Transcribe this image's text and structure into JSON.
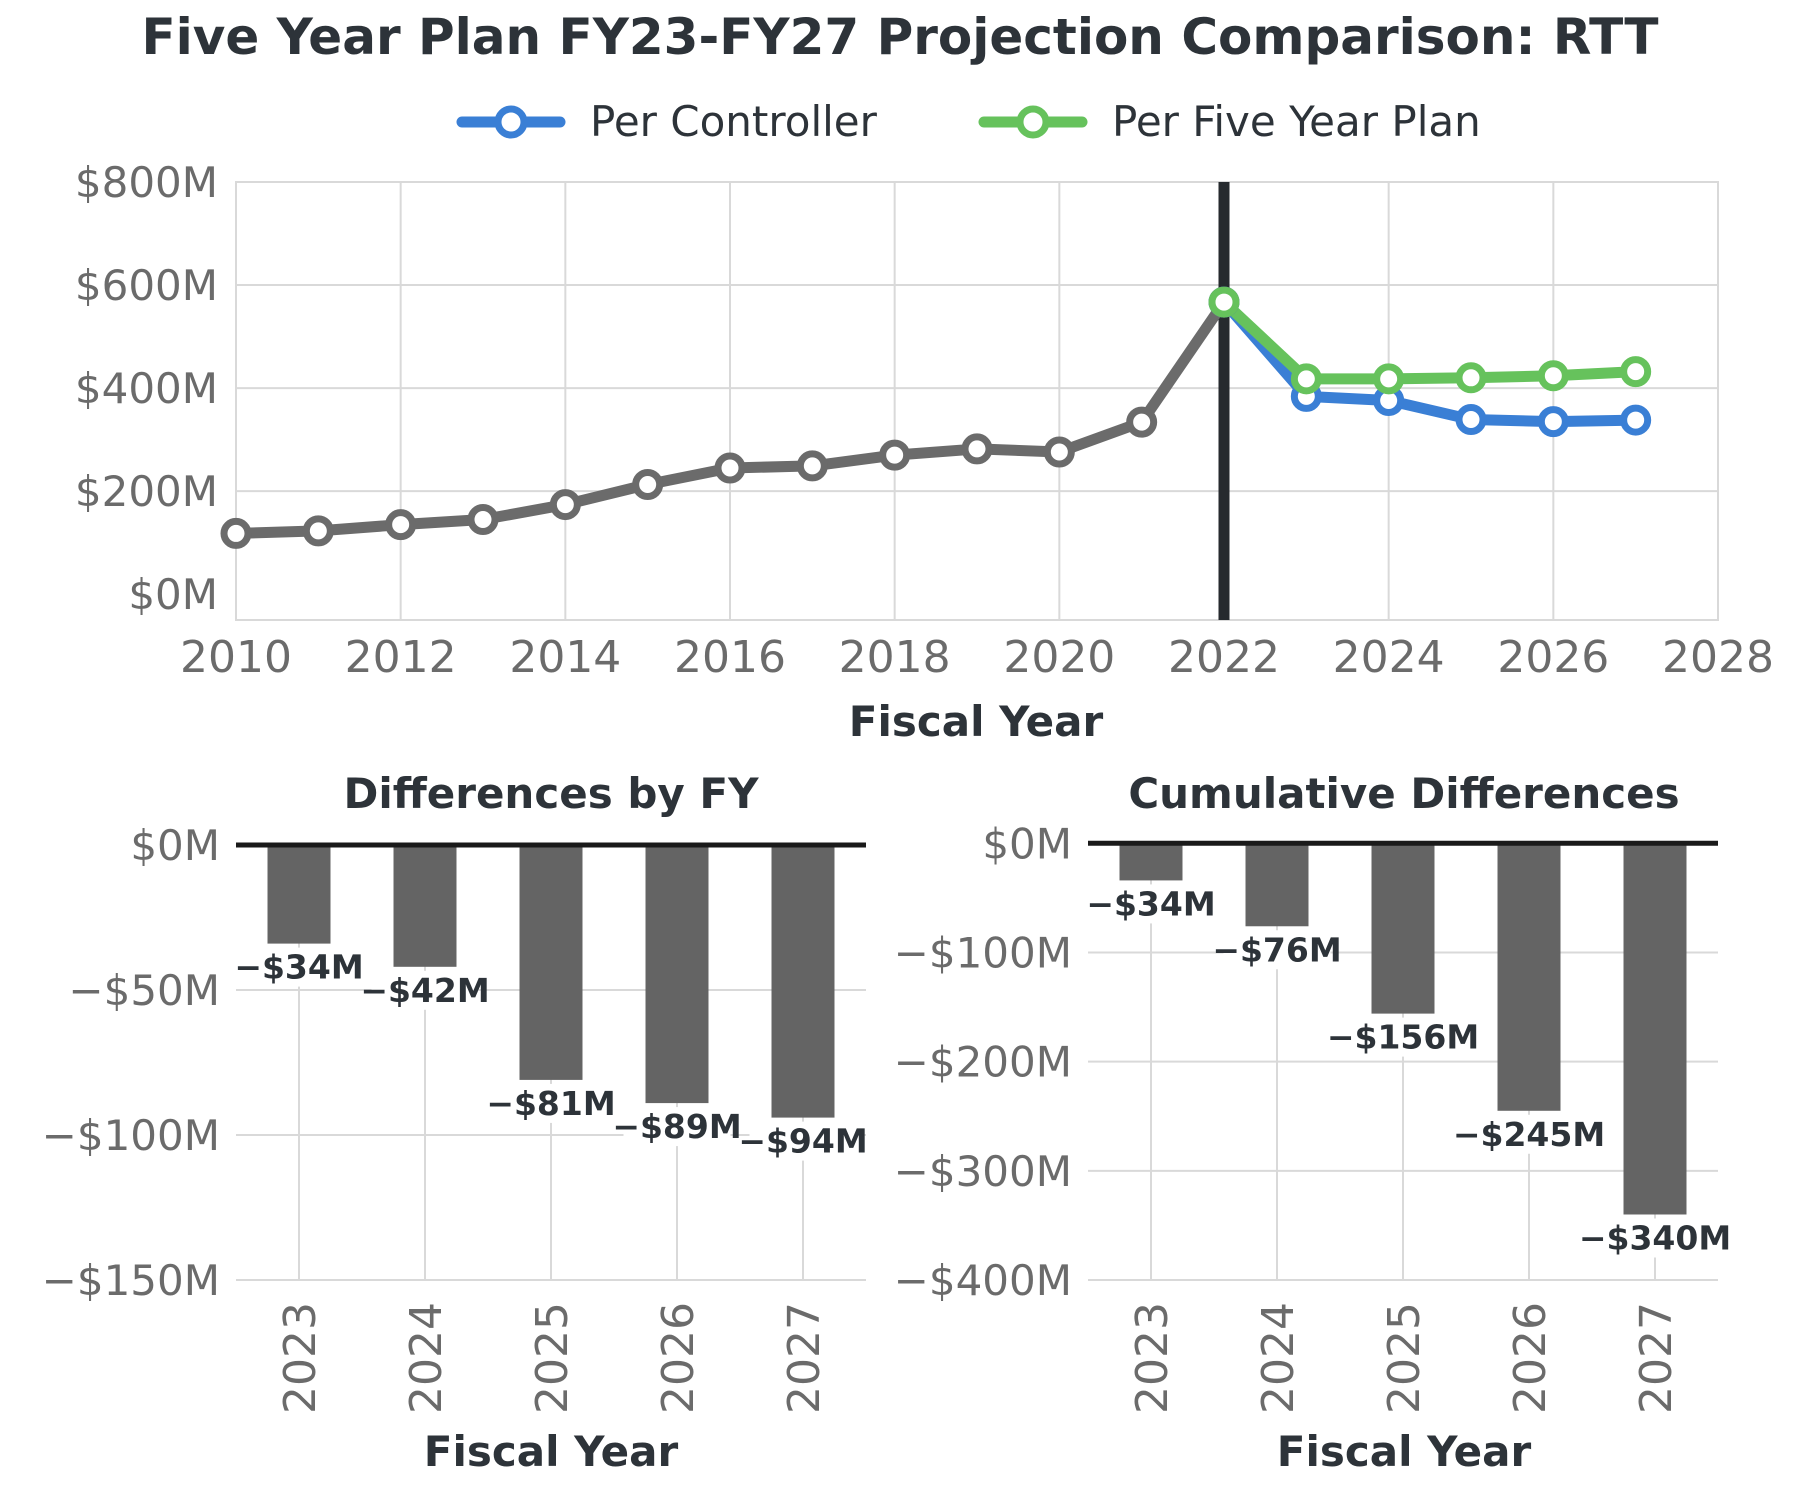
{
  "colors": {
    "actual": "#6b6b6b",
    "controller": "#3a7fd5",
    "five_year_plan": "#66c25c",
    "bar": "#646464",
    "divider": "#262a2e",
    "grid": "#d9d9d9",
    "text": "#2d3339",
    "tick": "#6b6b6b"
  },
  "chart_data": [
    {
      "type": "line",
      "title": "Five Year Plan FY23-FY27 Projection Comparison: RTT",
      "xlabel": "Fiscal Year",
      "ylabel": "",
      "xlim": [
        2010,
        2028
      ],
      "ylim": [
        -50,
        800
      ],
      "x_ticks": [
        "2010",
        "2012",
        "2014",
        "2016",
        "2018",
        "2020",
        "2022",
        "2024",
        "2026",
        "2028"
      ],
      "y_ticks": [
        "$0M",
        "$200M",
        "$400M",
        "$600M",
        "$800M"
      ],
      "y_tick_values": [
        0,
        200,
        400,
        600,
        800
      ],
      "x_tick_values": [
        2010,
        2012,
        2014,
        2016,
        2018,
        2020,
        2022,
        2024,
        2026,
        2028
      ],
      "vertical_line_x": 2022,
      "grid": true,
      "legend_position": "top",
      "series": [
        {
          "color_key": "actual",
          "x": [
            2010,
            2011,
            2012,
            2013,
            2014,
            2015,
            2016,
            2017,
            2018,
            2019,
            2020,
            2021,
            2022
          ],
          "values": [
            118,
            123,
            135,
            145,
            174,
            213,
            245,
            249,
            270,
            282,
            276,
            334,
            567
          ]
        },
        {
          "name": "Per Controller",
          "color_key": "controller",
          "x": [
            2022,
            2023,
            2024,
            2025,
            2026,
            2027
          ],
          "values": [
            567,
            384,
            376,
            339,
            335,
            338
          ]
        },
        {
          "name": "Per Five Year Plan",
          "color_key": "five_year_plan",
          "x": [
            2022,
            2023,
            2024,
            2025,
            2026,
            2027
          ],
          "values": [
            567,
            418,
            418,
            420,
            424,
            432
          ]
        }
      ]
    },
    {
      "type": "bar",
      "title": "Differences by FY",
      "xlabel": "Fiscal Year",
      "ylabel": "",
      "categories": [
        "2023",
        "2024",
        "2025",
        "2026",
        "2027"
      ],
      "values": [
        -34,
        -42,
        -81,
        -89,
        -94
      ],
      "data_labels": [
        "−$34M",
        "−$42M",
        "−$81M",
        "−$89M",
        "−$94M"
      ],
      "ylim": [
        -150,
        10
      ],
      "y_ticks": [
        "$0M",
        "−$50M",
        "−$100M",
        "−$150M"
      ],
      "y_tick_values": [
        0,
        -50,
        -100,
        -150
      ],
      "grid": true
    },
    {
      "type": "bar",
      "title": "Cumulative Differences",
      "xlabel": "Fiscal Year",
      "ylabel": "",
      "categories": [
        "2023",
        "2024",
        "2025",
        "2026",
        "2027"
      ],
      "values": [
        -34,
        -76,
        -156,
        -245,
        -340
      ],
      "data_labels": [
        "−$34M",
        "−$76M",
        "−$156M",
        "−$245M",
        "−$340M"
      ],
      "ylim": [
        -400,
        25
      ],
      "y_ticks": [
        "$0M",
        "−$100M",
        "−$200M",
        "−$300M",
        "−$400M"
      ],
      "y_tick_values": [
        0,
        -100,
        -200,
        -300,
        -400
      ],
      "grid": true
    }
  ]
}
